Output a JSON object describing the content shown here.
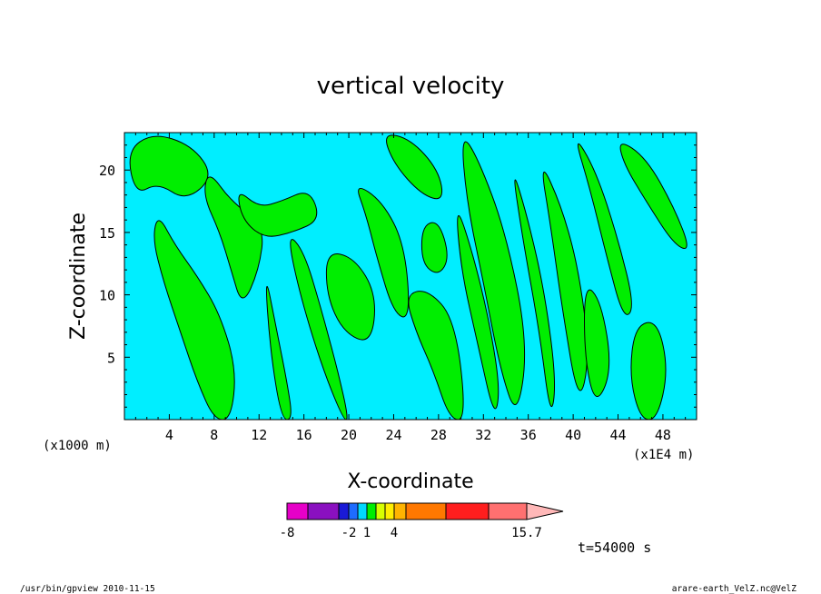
{
  "chart_data": {
    "type": "heatmap",
    "title": "vertical velocity",
    "xlabel": "X-coordinate",
    "ylabel": "Z-coordinate",
    "x_scale_note": "(x1E4 m)",
    "y_scale_note": "(x1000 m)",
    "xlim": [
      0,
      51
    ],
    "ylim": [
      0,
      23
    ],
    "x_ticks": [
      4,
      8,
      12,
      16,
      20,
      24,
      28,
      32,
      36,
      40,
      44,
      48
    ],
    "y_ticks": [
      5,
      10,
      15,
      20
    ],
    "x_tick_labels": [
      "4",
      "8",
      "12",
      "16",
      "20",
      "24",
      "28",
      "32",
      "36",
      "40",
      "44",
      "48"
    ],
    "y_tick_labels": [
      "5",
      "10",
      "15",
      "20"
    ],
    "fill_colors": {
      "negative": "#00eeff",
      "positive": "#00ee00",
      "contour": "#000000"
    },
    "green_regions": [
      {
        "x": [
          0.2,
          2.5,
          6.0,
          8.0,
          5.5,
          3.0,
          1.0
        ],
        "z": [
          21.5,
          23.0,
          22.0,
          19.5,
          17.5,
          19.0,
          18.0
        ]
      },
      {
        "x": [
          3.0,
          4.5,
          6.5,
          8.5,
          10.0,
          9.5,
          8.0,
          6.5,
          5.0,
          3.5,
          2.5
        ],
        "z": [
          16.5,
          14.0,
          11.5,
          8.5,
          4.0,
          0.0,
          0.0,
          3.0,
          7.0,
          11.0,
          14.5
        ]
      },
      {
        "x": [
          7.5,
          9.5,
          12.5,
          12.0,
          10.5,
          9.5,
          8.5,
          7.0
        ],
        "z": [
          20.0,
          17.5,
          15.5,
          12.0,
          9.0,
          12.0,
          15.0,
          18.0
        ]
      },
      {
        "x": [
          10.0,
          12.0,
          14.0,
          16.5,
          17.5,
          15.0,
          12.5,
          10.5
        ],
        "z": [
          18.5,
          17.0,
          17.5,
          18.5,
          16.0,
          15.0,
          14.5,
          16.0
        ]
      },
      {
        "x": [
          14.5,
          16.0,
          17.5,
          19.0,
          20.0,
          19.5,
          17.5,
          15.5
        ],
        "z": [
          15.0,
          13.5,
          9.0,
          4.0,
          0.0,
          0.0,
          4.5,
          10.5
        ]
      },
      {
        "x": [
          12.5,
          13.5,
          14.5,
          15.0,
          14.0,
          13.0
        ],
        "z": [
          12.0,
          7.5,
          3.0,
          0.0,
          0.0,
          5.5
        ]
      },
      {
        "x": [
          18.0,
          20.5,
          22.5,
          22.0,
          19.5,
          18.0
        ],
        "z": [
          13.5,
          13.0,
          10.0,
          6.0,
          7.0,
          10.0
        ]
      },
      {
        "x": [
          20.5,
          23.0,
          25.0,
          25.5,
          24.0,
          22.5,
          21.5
        ],
        "z": [
          19.0,
          17.5,
          14.0,
          8.0,
          8.5,
          13.0,
          16.5
        ]
      },
      {
        "x": [
          25.0,
          27.0,
          29.5,
          30.5,
          29.0,
          27.5,
          26.0
        ],
        "z": [
          10.0,
          10.5,
          8.0,
          0.0,
          0.0,
          4.0,
          7.0
        ]
      },
      {
        "x": [
          23.0,
          25.5,
          28.0,
          28.5,
          26.5,
          24.0
        ],
        "z": [
          23.0,
          22.5,
          20.0,
          17.5,
          18.0,
          20.5
        ]
      },
      {
        "x": [
          29.5,
          31.0,
          32.5,
          33.5,
          33.0,
          31.5,
          30.0
        ],
        "z": [
          17.5,
          13.5,
          8.0,
          2.5,
          0.0,
          6.0,
          12.0
        ]
      },
      {
        "x": [
          30.0,
          31.5,
          34.0,
          36.0,
          35.0,
          33.5,
          32.0,
          30.5
        ],
        "z": [
          23.0,
          21.0,
          15.0,
          6.0,
          0.0,
          4.0,
          11.0,
          17.5
        ]
      },
      {
        "x": [
          34.5,
          36.0,
          37.5,
          38.5,
          38.0,
          37.0,
          35.5
        ],
        "z": [
          20.5,
          16.0,
          10.0,
          3.0,
          0.0,
          7.0,
          14.5
        ]
      },
      {
        "x": [
          37.0,
          39.0,
          40.5,
          41.5,
          40.5,
          39.0,
          38.0
        ],
        "z": [
          21.0,
          17.0,
          12.0,
          5.0,
          1.0,
          9.0,
          15.5
        ]
      },
      {
        "x": [
          40.0,
          42.0,
          44.0,
          45.5,
          44.5,
          43.0,
          41.5
        ],
        "z": [
          23.0,
          20.0,
          14.5,
          9.0,
          8.0,
          13.0,
          18.5
        ]
      },
      {
        "x": [
          44.0,
          46.5,
          49.0,
          50.5,
          49.0,
          46.5,
          44.5
        ],
        "z": [
          22.5,
          21.0,
          17.0,
          13.5,
          14.0,
          17.5,
          20.5
        ]
      },
      {
        "x": [
          45.5,
          47.5,
          48.5,
          47.5,
          46.0,
          45.0
        ],
        "z": [
          7.5,
          8.0,
          4.0,
          0.0,
          0.0,
          3.5
        ]
      },
      {
        "x": [
          41.0,
          42.5,
          43.5,
          42.0,
          41.0
        ],
        "z": [
          11.0,
          9.5,
          4.0,
          1.0,
          5.0
        ]
      },
      {
        "x": [
          26.5,
          28.0,
          29.0,
          28.0,
          26.5
        ],
        "z": [
          15.5,
          16.0,
          13.0,
          11.5,
          12.5
        ]
      }
    ],
    "colorbar": {
      "colors": [
        "#e600c8",
        "#8a10c0",
        "#1a1ad8",
        "#1e6cff",
        "#00d8ff",
        "#00ee00",
        "#d8ff00",
        "#ffee00",
        "#ffb400",
        "#ff7800",
        "#ff1e1e",
        "#ff7070",
        "#ffb8b8"
      ],
      "tick_labels": [
        "-8",
        "-2",
        "1",
        "4",
        "15.7"
      ]
    },
    "time_label": "t=54000 s"
  },
  "footer": {
    "left": "/usr/bin/gpview   2010-11-15",
    "right": "arare-earth_VelZ.nc@VelZ"
  }
}
